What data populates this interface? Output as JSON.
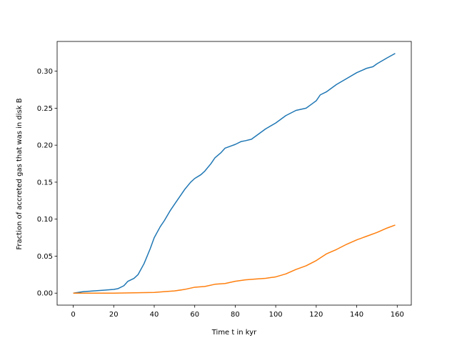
{
  "chart_data": {
    "type": "line",
    "xlabel": "Time t in kyr",
    "ylabel": "Fraction of accreted gas that was in disk B",
    "xlim": [
      -7.95,
      166.95
    ],
    "ylim": [
      -0.0162,
      0.3402
    ],
    "xticks": [
      0,
      20,
      40,
      60,
      80,
      100,
      120,
      140,
      160
    ],
    "yticks": [
      {
        "value": 0,
        "label": "0.00"
      },
      {
        "value": 0.05,
        "label": "0.05"
      },
      {
        "value": 0.1,
        "label": "0.10"
      },
      {
        "value": 0.15,
        "label": "0.15"
      },
      {
        "value": 0.2,
        "label": "0.20"
      },
      {
        "value": 0.25,
        "label": "0.25"
      },
      {
        "value": 0.3,
        "label": "0.30"
      }
    ],
    "series": [
      {
        "color": "#1f77b4",
        "x": [
          0,
          5,
          10,
          15,
          20,
          22,
          25,
          27,
          30,
          32,
          35,
          38,
          40,
          43,
          45,
          48,
          50,
          52,
          55,
          58,
          60,
          63,
          65,
          68,
          70,
          73,
          75,
          78,
          80,
          83,
          85,
          88,
          90,
          95,
          100,
          105,
          110,
          115,
          118,
          120,
          122,
          125,
          130,
          135,
          140,
          145,
          148,
          150,
          155,
          159
        ],
        "values": [
          0.0,
          0.002,
          0.003,
          0.004,
          0.005,
          0.006,
          0.01,
          0.016,
          0.02,
          0.025,
          0.04,
          0.06,
          0.075,
          0.09,
          0.098,
          0.112,
          0.12,
          0.128,
          0.14,
          0.15,
          0.155,
          0.16,
          0.165,
          0.175,
          0.183,
          0.19,
          0.196,
          0.199,
          0.201,
          0.205,
          0.206,
          0.208,
          0.212,
          0.222,
          0.23,
          0.24,
          0.247,
          0.25,
          0.256,
          0.26,
          0.268,
          0.272,
          0.282,
          0.29,
          0.298,
          0.304,
          0.306,
          0.31,
          0.318,
          0.324
        ]
      },
      {
        "color": "#ff7f0e",
        "x": [
          0,
          20,
          40,
          45,
          50,
          55,
          60,
          65,
          70,
          75,
          80,
          85,
          90,
          95,
          100,
          105,
          110,
          115,
          120,
          125,
          130,
          135,
          140,
          145,
          150,
          155,
          159
        ],
        "values": [
          0.0,
          0.0,
          0.001,
          0.002,
          0.003,
          0.005,
          0.008,
          0.009,
          0.012,
          0.013,
          0.016,
          0.018,
          0.019,
          0.02,
          0.022,
          0.026,
          0.032,
          0.037,
          0.044,
          0.053,
          0.059,
          0.066,
          0.072,
          0.077,
          0.082,
          0.088,
          0.092
        ]
      }
    ]
  }
}
